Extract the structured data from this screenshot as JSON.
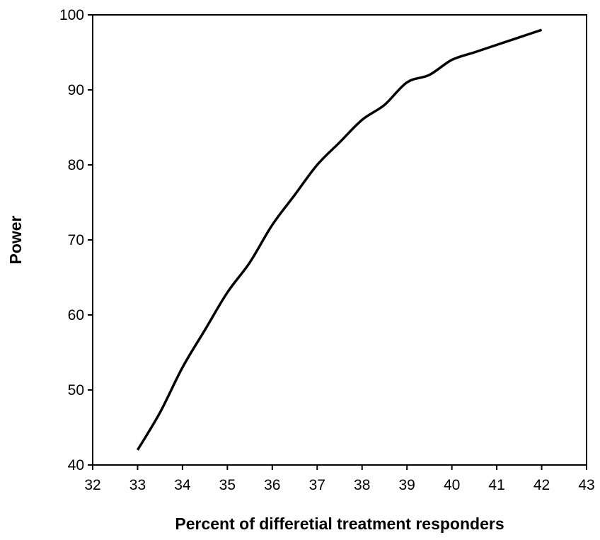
{
  "chart_data": {
    "type": "line",
    "x_label": "Percent of differetial treatment responders",
    "y_label": "Power",
    "x": [
      33,
      33.5,
      34,
      34.5,
      35,
      35.5,
      36,
      36.5,
      37,
      37.5,
      38,
      38.5,
      39,
      39.5,
      40,
      40.5,
      41,
      41.5,
      42
    ],
    "values": [
      42,
      47,
      53,
      58,
      63,
      67,
      72,
      76,
      80,
      83,
      86,
      88,
      91,
      92,
      94,
      95,
      96,
      97,
      98
    ],
    "color": "#000000",
    "xlim": [
      32,
      43
    ],
    "xticks": [
      32,
      33,
      34,
      35,
      36,
      37,
      38,
      39,
      40,
      41,
      42,
      43
    ],
    "ylim": [
      40,
      100
    ],
    "yticks": [
      40,
      50,
      60,
      70,
      80,
      90,
      100
    ],
    "grid": false
  }
}
